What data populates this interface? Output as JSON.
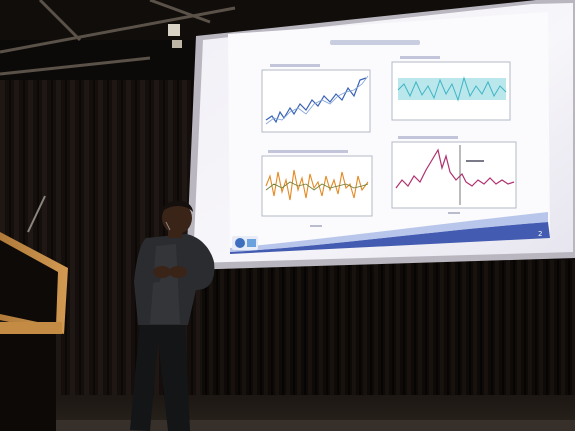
{
  "slide": {
    "page_number": "2"
  }
}
